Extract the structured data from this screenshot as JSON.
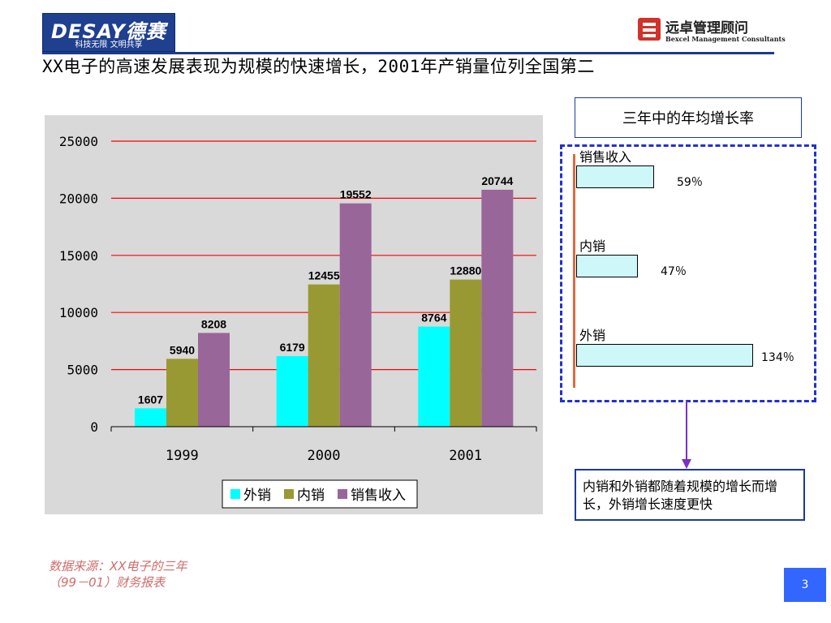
{
  "header": {
    "logo_left": {
      "brand": "DESAY德赛",
      "slogan": "科技无限  文明共享"
    },
    "logo_right": {
      "cn": "远卓管理顾问",
      "en": "Bexcel Management Consultants"
    },
    "title": "XX电子的高速发展表现为规模的快速增长，2001年产销量位列全国第二"
  },
  "colors": {
    "export": "#00ffff",
    "domestic": "#999933",
    "revenue": "#996699",
    "gridline": "#ff0000",
    "plot_bg": "#d9d9d9",
    "accent_blue": "#1a3a9e"
  },
  "chart_data": {
    "type": "bar",
    "categories": [
      "1999",
      "2000",
      "2001"
    ],
    "series": [
      {
        "name": "外销",
        "values": [
          1607,
          6179,
          8764
        ]
      },
      {
        "name": "内销",
        "values": [
          5940,
          12455,
          12880
        ]
      },
      {
        "name": "销售收入",
        "values": [
          8208,
          19552,
          20744
        ]
      }
    ],
    "data_labels": [
      [
        "1607",
        "6179",
        "8764"
      ],
      [
        "5940",
        "12455",
        "12880"
      ],
      [
        "8208",
        "19552",
        "20744"
      ]
    ],
    "ylim": [
      0,
      25000
    ],
    "yticks": [
      "0",
      "5000",
      "10000",
      "15000",
      "20000",
      "25000"
    ],
    "ytick_values": [
      0,
      5000,
      10000,
      15000,
      20000,
      25000
    ],
    "grid": true,
    "legend_position": "bottom-center",
    "title": "",
    "xlabel": "",
    "ylabel": ""
  },
  "growth_panel": {
    "title": "三年中的年均增长率",
    "items": [
      {
        "label": "销售收入",
        "value": 59,
        "value_text": "59％"
      },
      {
        "label": "内销",
        "value": 47,
        "value_text": "47％"
      },
      {
        "label": "外销",
        "value": 134,
        "value_text": "134％"
      }
    ],
    "note": "内销和外销都随着规模的增长而增长，外销增长速度更快"
  },
  "footer": {
    "source": "数据来源：XX电子的三年\n（99－01）财务报表",
    "page_number": "3"
  }
}
